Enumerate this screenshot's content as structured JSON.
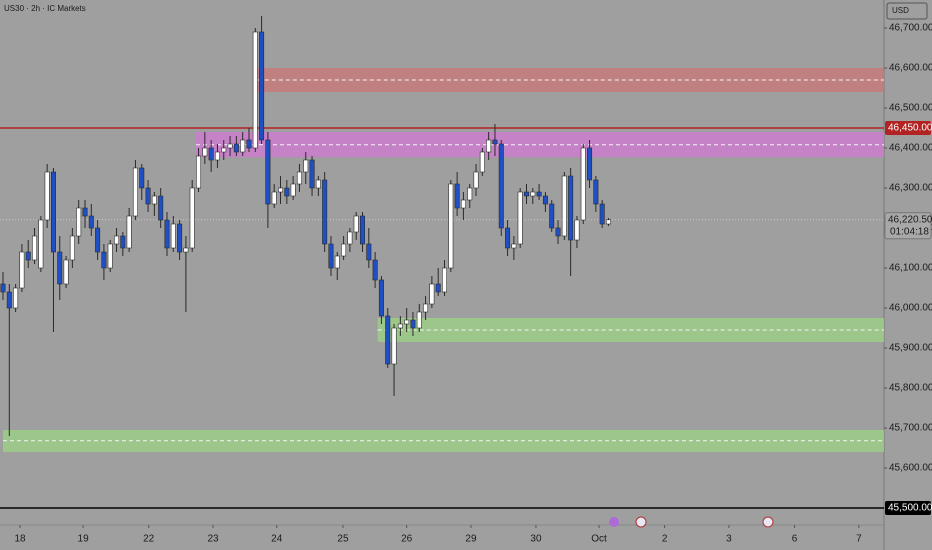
{
  "chart_data": {
    "type": "candlestick",
    "title": "US30 · 2h · IC Markets",
    "currency": "USD",
    "up_color": "#ffffff",
    "down_color": "#1f4fc4",
    "wick_color": "#2a2a2a",
    "ylim": [
      45495,
      46770
    ],
    "yticks": [
      {
        "value": 46700,
        "label": "46,700.00"
      },
      {
        "value": 46600,
        "label": "46,600.00"
      },
      {
        "value": 46500,
        "label": "46,500.00"
      },
      {
        "value": 46400,
        "label": "46,400.00"
      },
      {
        "value": 46300,
        "label": "46,300.00"
      },
      {
        "value": 46200,
        "label": "46,200.00"
      },
      {
        "value": 46100,
        "label": "46,100.00"
      },
      {
        "value": 46000,
        "label": "46,000.00"
      },
      {
        "value": 45900,
        "label": "45,900.00"
      },
      {
        "value": 45800,
        "label": "45,800.00"
      },
      {
        "value": 45700,
        "label": "45,700.00"
      },
      {
        "value": 45600,
        "label": "45,600.00"
      }
    ],
    "xlim": [
      0,
      140
    ],
    "xticks": [
      {
        "value": 2.7,
        "label": "18"
      },
      {
        "value": 12.7,
        "label": "19"
      },
      {
        "value": 23.1,
        "label": "22"
      },
      {
        "value": 33.3,
        "label": "23"
      },
      {
        "value": 43.4,
        "label": "24"
      },
      {
        "value": 53.9,
        "label": "25"
      },
      {
        "value": 64,
        "label": "26"
      },
      {
        "value": 74.2,
        "label": "29"
      },
      {
        "value": 84.5,
        "label": "30"
      },
      {
        "value": 94.5,
        "label": "Oct"
      },
      {
        "value": 104.9,
        "label": "2"
      },
      {
        "value": 115.1,
        "label": "3"
      },
      {
        "value": 125.5,
        "label": "6"
      },
      {
        "value": 135.7,
        "label": "7"
      }
    ],
    "zones": [
      {
        "high": 46600,
        "low": 46540,
        "mid": 46570,
        "start": 40.4,
        "color": "#c87878"
      },
      {
        "high": 46440,
        "low": 46377,
        "mid": 46408,
        "start": 30.6,
        "color": "#d07ad0"
      },
      {
        "high": 45975,
        "low": 45915,
        "mid": 45945,
        "start": 59.4,
        "color": "#9ccf84"
      },
      {
        "high": 45695,
        "low": 45640,
        "mid": 45668,
        "start": 0,
        "color": "#9ccf84"
      }
    ],
    "levels": [
      {
        "value": 46450,
        "label": "46,450.00",
        "color": "#b22222"
      },
      {
        "value": 45500,
        "label": "45,500.00",
        "color": "#000000"
      }
    ],
    "last": {
      "value": 46220.5,
      "label": "46,220.50",
      "countdown": "01:04:18"
    },
    "ohlc": [
      [
        46060,
        46090,
        46020,
        46040
      ],
      [
        46040,
        46060,
        45680,
        46000
      ],
      [
        46000,
        46060,
        45990,
        46050
      ],
      [
        46050,
        46160,
        46040,
        46140
      ],
      [
        46140,
        46170,
        46100,
        46120
      ],
      [
        46120,
        46200,
        46110,
        46180
      ],
      [
        46100,
        46230,
        46090,
        46220
      ],
      [
        46220,
        46360,
        46200,
        46340
      ],
      [
        46340,
        46350,
        45940,
        46140
      ],
      [
        46140,
        46180,
        46020,
        46060
      ],
      [
        46060,
        46130,
        46050,
        46120
      ],
      [
        46120,
        46200,
        46100,
        46180
      ],
      [
        46180,
        46270,
        46160,
        46250
      ],
      [
        46250,
        46270,
        46200,
        46230
      ],
      [
        46230,
        46260,
        46180,
        46200
      ],
      [
        46200,
        46220,
        46120,
        46140
      ],
      [
        46140,
        46160,
        46070,
        46100
      ],
      [
        46100,
        46170,
        46090,
        46160
      ],
      [
        46160,
        46200,
        46140,
        46180
      ],
      [
        46180,
        46190,
        46130,
        46150
      ],
      [
        46150,
        46250,
        46140,
        46230
      ],
      [
        46230,
        46370,
        46220,
        46350
      ],
      [
        46350,
        46360,
        46270,
        46300
      ],
      [
        46300,
        46320,
        46240,
        46260
      ],
      [
        46260,
        46290,
        46230,
        46280
      ],
      [
        46280,
        46300,
        46200,
        46220
      ],
      [
        46220,
        46240,
        46130,
        46150
      ],
      [
        46150,
        46230,
        46140,
        46210
      ],
      [
        46210,
        46220,
        46120,
        46140
      ],
      [
        46140,
        46180,
        45990,
        46150
      ],
      [
        46150,
        46320,
        46140,
        46300
      ],
      [
        46300,
        46400,
        46290,
        46380
      ],
      [
        46380,
        46440,
        46360,
        46400
      ],
      [
        46400,
        46420,
        46340,
        46370
      ],
      [
        46370,
        46410,
        46350,
        46390
      ],
      [
        46390,
        46420,
        46370,
        46400
      ],
      [
        46400,
        46430,
        46380,
        46410
      ],
      [
        46410,
        46430,
        46380,
        46390
      ],
      [
        46390,
        46440,
        46380,
        46420
      ],
      [
        46420,
        46450,
        46390,
        46400
      ],
      [
        46400,
        46700,
        46390,
        46690
      ],
      [
        46690,
        46730,
        46410,
        46420
      ],
      [
        46420,
        46440,
        46200,
        46260
      ],
      [
        46260,
        46310,
        46250,
        46290
      ],
      [
        46290,
        46330,
        46260,
        46300
      ],
      [
        46300,
        46320,
        46260,
        46280
      ],
      [
        46280,
        46330,
        46270,
        46310
      ],
      [
        46310,
        46360,
        46290,
        46340
      ],
      [
        46340,
        46390,
        46310,
        46370
      ],
      [
        46370,
        46380,
        46280,
        46300
      ],
      [
        46300,
        46330,
        46280,
        46320
      ],
      [
        46320,
        46340,
        46140,
        46160
      ],
      [
        46160,
        46180,
        46080,
        46100
      ],
      [
        46100,
        46140,
        46070,
        46130
      ],
      [
        46130,
        46180,
        46120,
        46160
      ],
      [
        46160,
        46200,
        46140,
        46190
      ],
      [
        46190,
        46240,
        46170,
        46230
      ],
      [
        46230,
        46240,
        46140,
        46160
      ],
      [
        46160,
        46200,
        46100,
        46120
      ],
      [
        46120,
        46140,
        46050,
        46070
      ],
      [
        46070,
        46080,
        45960,
        45980
      ],
      [
        45980,
        46000,
        45850,
        45860
      ],
      [
        45860,
        45960,
        45780,
        45950
      ],
      [
        45950,
        45980,
        45930,
        45960
      ],
      [
        45960,
        46000,
        45940,
        45970
      ],
      [
        45970,
        45990,
        45930,
        45950
      ],
      [
        45950,
        46010,
        45940,
        45990
      ],
      [
        45990,
        46030,
        45970,
        46010
      ],
      [
        46010,
        46080,
        46000,
        46060
      ],
      [
        46060,
        46100,
        46030,
        46040
      ],
      [
        46040,
        46120,
        46030,
        46100
      ],
      [
        46100,
        46320,
        46090,
        46310
      ],
      [
        46310,
        46340,
        46230,
        46250
      ],
      [
        46250,
        46290,
        46220,
        46270
      ],
      [
        46270,
        46310,
        46250,
        46300
      ],
      [
        46300,
        46360,
        46280,
        46340
      ],
      [
        46340,
        46400,
        46330,
        46390
      ],
      [
        46390,
        46440,
        46370,
        46420
      ],
      [
        46420,
        46460,
        46380,
        46410
      ],
      [
        46410,
        46420,
        46180,
        46200
      ],
      [
        46200,
        46220,
        46130,
        46150
      ],
      [
        46150,
        46180,
        46120,
        46160
      ],
      [
        46160,
        46300,
        46150,
        46290
      ],
      [
        46290,
        46310,
        46260,
        46280
      ],
      [
        46280,
        46300,
        46260,
        46290
      ],
      [
        46290,
        46310,
        46270,
        46280
      ],
      [
        46280,
        46290,
        46240,
        46260
      ],
      [
        46260,
        46270,
        46190,
        46200
      ],
      [
        46200,
        46220,
        46160,
        46180
      ],
      [
        46180,
        46340,
        46170,
        46330
      ],
      [
        46330,
        46350,
        46080,
        46170
      ],
      [
        46170,
        46230,
        46150,
        46220
      ],
      [
        46220,
        46410,
        46210,
        46400
      ],
      [
        46400,
        46420,
        46300,
        46320
      ],
      [
        46320,
        46330,
        46240,
        46260
      ],
      [
        46260,
        46270,
        46200,
        46210
      ],
      [
        46210,
        46225,
        46205,
        46220.5
      ]
    ]
  }
}
